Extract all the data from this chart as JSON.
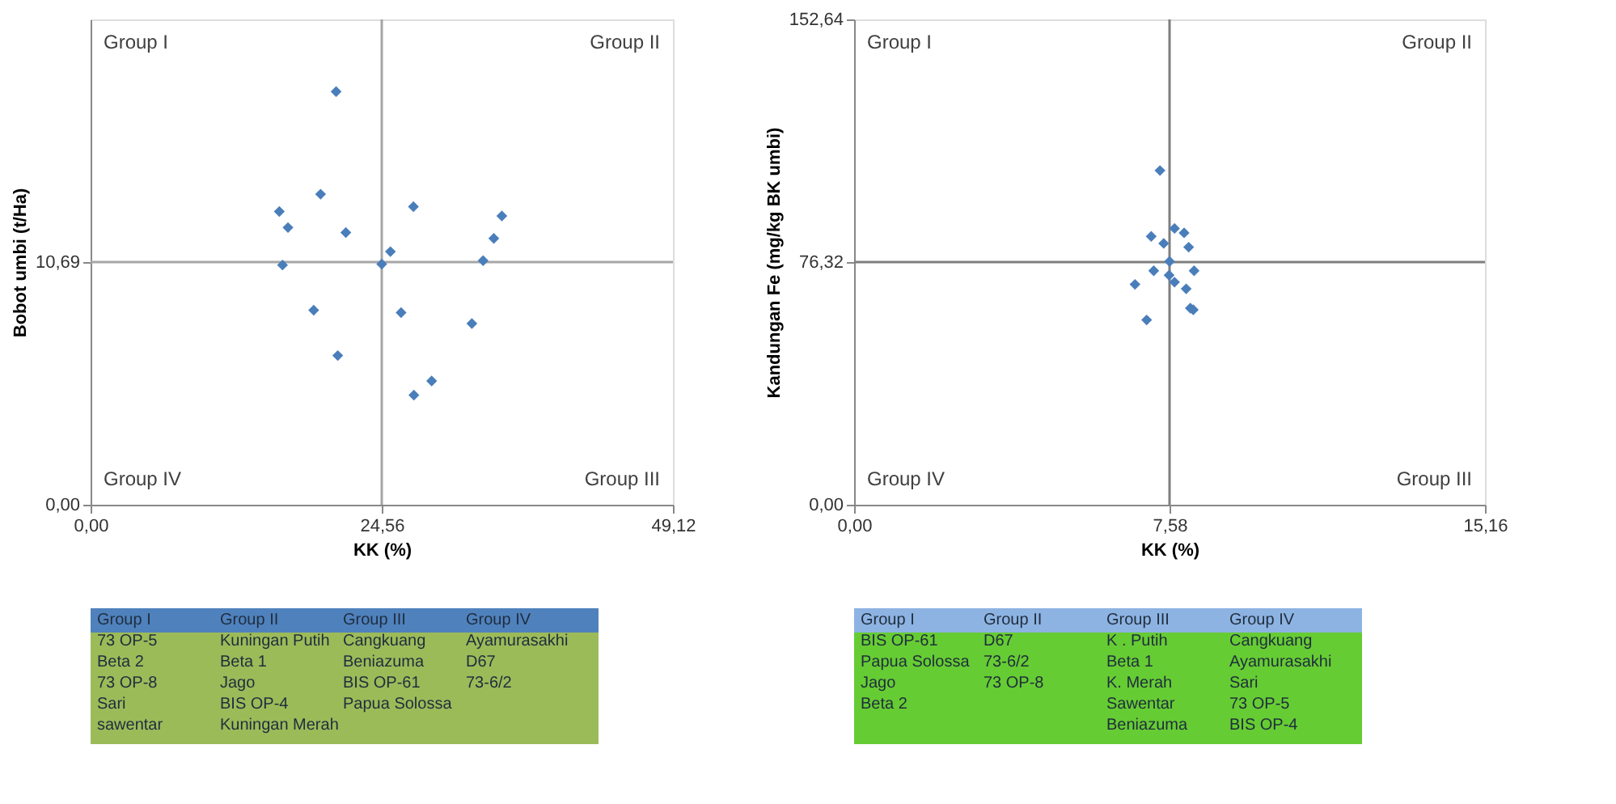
{
  "chart_data": [
    {
      "type": "scatter",
      "xlabel": "KK (%)",
      "ylabel": "Bobot umbi (t/Ha)",
      "marker": "diamond",
      "xlim": [
        0,
        49.12
      ],
      "ylim": [
        0,
        21.38
      ],
      "xticks": [
        {
          "value": 0,
          "label": "0,00"
        },
        {
          "value": 24.56,
          "label": "24,56"
        },
        {
          "value": 49.12,
          "label": "49,12"
        }
      ],
      "yticks": [
        {
          "value": 0,
          "label": "0,00"
        },
        {
          "value": 10.69,
          "label": "10,69"
        }
      ],
      "ref_lines": [
        {
          "axis": "x",
          "value": 24.56,
          "color": "#a6a6a6"
        },
        {
          "axis": "y",
          "value": 10.69,
          "color": "#a6a6a6"
        }
      ],
      "series": [
        {
          "color": "#4a7ebb",
          "x": [
            20.71,
            19.4,
            15.92,
            16.65,
            21.53,
            27.23,
            34.69,
            34.01,
            25.29,
            24.56,
            16.19,
            33.11,
            18.82,
            26.19,
            32.16,
            20.85,
            28.77,
            27.27
          ],
          "values": [
            18.2,
            13.68,
            12.92,
            12.21,
            11.99,
            13.13,
            12.72,
            11.73,
            11.15,
            10.6,
            10.56,
            10.75,
            8.57,
            8.46,
            7.98,
            6.57,
            5.45,
            4.83
          ]
        }
      ],
      "annotations": [
        "Group I",
        "Group II",
        "Group IV",
        "Group III",
        "Group I\n73 OP-5\nBeta 2\n73 OP-8\nSari\nsawentar",
        "Group II\nKuningan Putih\nBeta 1\nJago\nBIS OP-4\nKuningan Merah",
        "Group III\nCangkuang\nBeniazuma\nBIS OP-61\nPapua Solossa",
        "Group IV\nAyamurasakhi\nD67\n73-6/2"
      ]
    },
    {
      "type": "scatter",
      "xlabel": "KK (%)",
      "ylabel": "Kandungan Fe (mg/kg BK umbi)",
      "marker": "diamond",
      "xlim": [
        0,
        15.16
      ],
      "ylim": [
        0,
        152.64
      ],
      "xticks": [
        {
          "value": 0,
          "label": "0,00"
        },
        {
          "value": 7.58,
          "label": "7,58"
        },
        {
          "value": 15.16,
          "label": "15,16"
        }
      ],
      "yticks": [
        {
          "value": 0,
          "label": "0,00"
        },
        {
          "value": 76.32,
          "label": "76,32"
        },
        {
          "value": 152.64,
          "label": "152,64"
        }
      ],
      "ref_lines": [
        {
          "axis": "x",
          "value": 7.58,
          "color": "#7f7f7f"
        },
        {
          "axis": "y",
          "value": 76.32,
          "color": "#7f7f7f"
        }
      ],
      "series": [
        {
          "color": "#4a7ebb",
          "x": [
            7.35,
            7.7,
            7.93,
            7.14,
            7.44,
            8.04,
            7.58,
            7.2,
            8.17,
            7.57,
            7.7,
            6.75,
            7.98,
            8.08,
            8.15,
            7.03
          ],
          "values": [
            105.1,
            86.9,
            85.5,
            84.4,
            82.2,
            81.0,
            76.5,
            73.6,
            73.6,
            72.2,
            70.0,
            69.3,
            67.9,
            61.8,
            61.3,
            58.1
          ]
        }
      ],
      "annotations": [
        "Group I",
        "Group  II",
        "Group IV",
        "Group III",
        "Group I\nBIS OP-61\nPapua Solossa\nJago\nBeta 2",
        "Group II\nD67\n73-6/2\n73 OP-8",
        "Group III\nK . Putih\nBeta 1\nK. Merah\nSawentar\nBeniazuma",
        "Group IV\nCangkuang\nAyamurasakhi\nSari\n73 OP-5\nBIS OP-4"
      ]
    }
  ]
}
